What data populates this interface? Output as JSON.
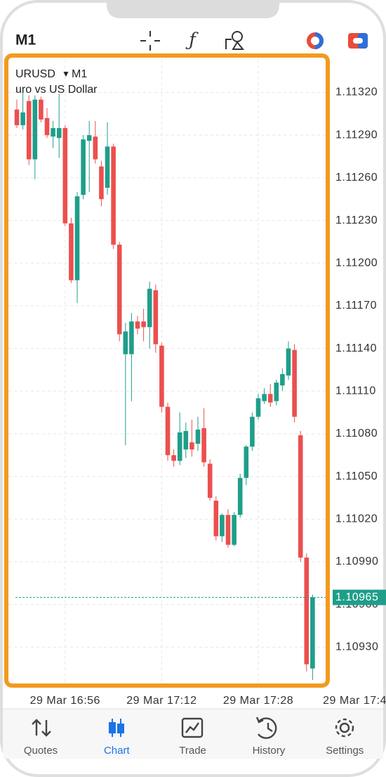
{
  "toolbar": {
    "timeframe": "M1"
  },
  "chart_data": {
    "type": "candlestick",
    "title": "URUSD",
    "period": "M1",
    "subtitle": "uro vs US Dollar",
    "up_color": "#1f9e8a",
    "down_color": "#ec4f4f",
    "open": [
      1.11308,
      1.11297,
      1.11314,
      1.11273,
      1.11315,
      1.11302,
      1.11289,
      1.11288,
      1.11295,
      1.11228,
      1.11188,
      1.11248,
      1.11286,
      1.11289,
      1.11268,
      1.11253,
      1.11282,
      1.11213,
      1.11136,
      1.11136,
      1.11159,
      1.11159,
      1.11155,
      1.11181,
      1.11142,
      1.11099,
      1.11065,
      1.11061,
      1.11069,
      1.11074,
      1.11073,
      1.11084,
      1.11059,
      1.11033,
      1.11008,
      1.11023,
      1.11002,
      1.11023,
      1.11049,
      1.11071,
      1.11092,
      1.11103,
      1.11108,
      1.11103,
      1.11114,
      1.11121,
      1.11139,
      1.11079,
      1.10993,
      1.10915
    ],
    "high": [
      1.11315,
      1.11321,
      1.11318,
      1.11318,
      1.11317,
      1.11309,
      1.113,
      1.11319,
      1.11297,
      1.11232,
      1.1125,
      1.1129,
      1.113,
      1.113,
      1.11272,
      1.11299,
      1.11284,
      1.11215,
      1.11158,
      1.11165,
      1.11163,
      1.11168,
      1.11187,
      1.11185,
      1.11144,
      1.11102,
      1.11069,
      1.11095,
      1.11088,
      1.1109,
      1.11092,
      1.11098,
      1.11062,
      1.11036,
      1.11024,
      1.11027,
      1.11025,
      1.11052,
      1.11072,
      1.11095,
      1.11108,
      1.11112,
      1.11115,
      1.11118,
      1.11126,
      1.11145,
      1.11143,
      1.11082,
      1.10996,
      1.10967
    ],
    "low": [
      1.11295,
      1.11294,
      1.11269,
      1.11259,
      1.11299,
      1.11288,
      1.11281,
      1.11274,
      1.11226,
      1.11186,
      1.11172,
      1.11245,
      1.1125,
      1.1127,
      1.1124,
      1.11248,
      1.1121,
      1.11145,
      1.11072,
      1.11103,
      1.1115,
      1.11145,
      1.1114,
      1.11137,
      1.11095,
      1.11061,
      1.11057,
      1.11058,
      1.11063,
      1.11064,
      1.11068,
      1.11057,
      1.11033,
      1.11005,
      1.11004,
      1.11,
      1.11001,
      1.11021,
      1.11044,
      1.11068,
      1.1109,
      1.11101,
      1.11099,
      1.111,
      1.1111,
      1.11118,
      1.11088,
      1.1099,
      1.10913,
      1.10907
    ],
    "close": [
      1.11297,
      1.11306,
      1.11273,
      1.11315,
      1.11301,
      1.1129,
      1.11295,
      1.11295,
      1.11228,
      1.11188,
      1.11247,
      1.11287,
      1.1129,
      1.11273,
      1.11245,
      1.11282,
      1.11213,
      1.1115,
      1.11152,
      1.11159,
      1.11154,
      1.11155,
      1.11182,
      1.11143,
      1.11099,
      1.11065,
      1.11061,
      1.11081,
      1.11082,
      1.11069,
      1.11083,
      1.1106,
      1.11035,
      1.11008,
      1.11023,
      1.11002,
      1.11023,
      1.11049,
      1.11071,
      1.11092,
      1.11105,
      1.11108,
      1.11102,
      1.11116,
      1.11122,
      1.1114,
      1.11092,
      1.10993,
      1.10918,
      1.10965
    ],
    "ylim": [
      1.10903,
      1.11343
    ],
    "yticks": [
      {
        "value": 1.1132,
        "label": "1.11320"
      },
      {
        "value": 1.1129,
        "label": "1.11290"
      },
      {
        "value": 1.1126,
        "label": "1.11260"
      },
      {
        "value": 1.1123,
        "label": "1.11230"
      },
      {
        "value": 1.112,
        "label": "1.11200"
      },
      {
        "value": 1.1117,
        "label": "1.11170"
      },
      {
        "value": 1.1114,
        "label": "1.11140"
      },
      {
        "value": 1.1111,
        "label": "1.11110"
      },
      {
        "value": 1.1108,
        "label": "1.11080"
      },
      {
        "value": 1.1105,
        "label": "1.11050"
      },
      {
        "value": 1.1102,
        "label": "1.11020"
      },
      {
        "value": 1.1099,
        "label": "1.10990"
      },
      {
        "value": 1.1096,
        "label": "1.10960"
      },
      {
        "value": 1.1093,
        "label": "1.10930"
      }
    ],
    "xticks": [
      {
        "value": 8,
        "label": "29 Mar 16:56"
      },
      {
        "value": 24,
        "label": "29 Mar 17:12"
      },
      {
        "value": 40,
        "label": "29 Mar 17:28"
      },
      {
        "value": 56,
        "label": "29 Mar 17:4"
      }
    ],
    "last_price": {
      "value": 1.10965,
      "label": "1.10965"
    },
    "grid": true
  },
  "nav": {
    "tabs": [
      {
        "label": "Quotes"
      },
      {
        "label": "Chart"
      },
      {
        "label": "Trade"
      },
      {
        "label": "History"
      },
      {
        "label": "Settings"
      }
    ]
  }
}
